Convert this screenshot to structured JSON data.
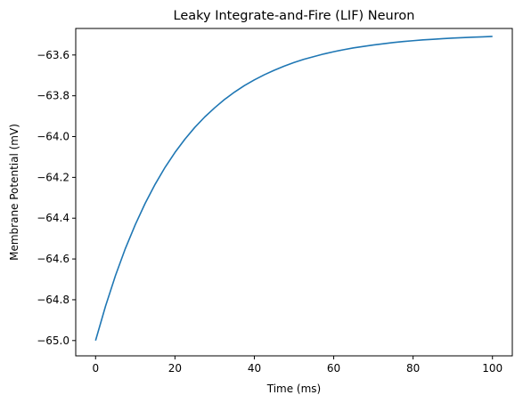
{
  "chart_data": {
    "type": "line",
    "title": "Leaky Integrate-and-Fire (LIF) Neuron",
    "xlabel": "Time (ms)",
    "ylabel": "Membrane Potential (mV)",
    "xlim": [
      -5,
      105
    ],
    "ylim": [
      -65.075,
      -63.47
    ],
    "x_ticks": [
      0,
      20,
      40,
      60,
      80,
      100
    ],
    "x_tick_labels": [
      "0",
      "20",
      "40",
      "60",
      "80",
      "100"
    ],
    "y_ticks": [
      -65.0,
      -64.8,
      -64.6,
      -64.4,
      -64.2,
      -64.0,
      -63.8,
      -63.6
    ],
    "y_tick_labels": [
      "−65.0",
      "−64.8",
      "−64.6",
      "−64.4",
      "−64.2",
      "−64.0",
      "−63.8",
      "−63.6"
    ],
    "grid": false,
    "legend": "none",
    "line_color": "#1f77b4",
    "series": [
      {
        "x": [
          0,
          2.5,
          5,
          7.5,
          10,
          12.5,
          15,
          17.5,
          20,
          22.5,
          25,
          27.5,
          30,
          32.5,
          35,
          37.5,
          40,
          42.5,
          45,
          47.5,
          50,
          52.5,
          55,
          57.5,
          60,
          62.5,
          65,
          67.5,
          70,
          72.5,
          75,
          77.5,
          80,
          82.5,
          85,
          87.5,
          90,
          92.5,
          95,
          97.5,
          100
        ],
        "y": [
          -65.0,
          -64.832,
          -64.682,
          -64.549,
          -64.432,
          -64.327,
          -64.234,
          -64.151,
          -64.078,
          -64.013,
          -63.955,
          -63.904,
          -63.859,
          -63.818,
          -63.782,
          -63.75,
          -63.722,
          -63.697,
          -63.675,
          -63.655,
          -63.637,
          -63.621,
          -63.608,
          -63.595,
          -63.584,
          -63.574,
          -63.565,
          -63.558,
          -63.551,
          -63.545,
          -63.539,
          -63.534,
          -63.53,
          -63.526,
          -63.523,
          -63.52,
          -63.517,
          -63.515,
          -63.513,
          -63.511,
          -63.509
        ]
      }
    ]
  }
}
